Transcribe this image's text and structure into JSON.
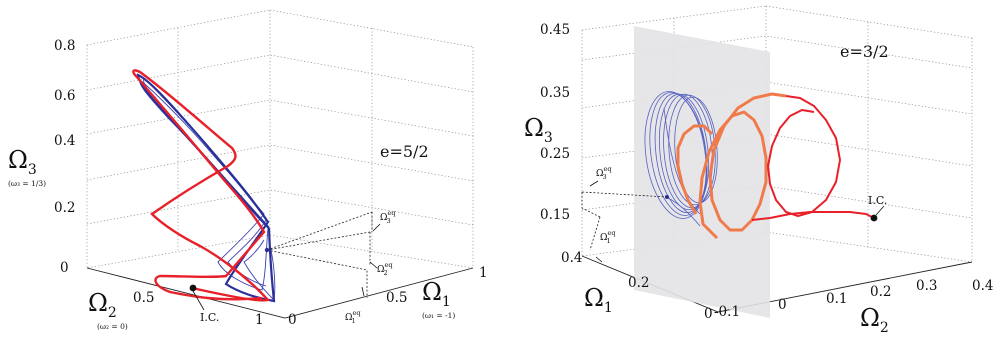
{
  "chart_data": [
    {
      "type": "line",
      "subtype": "3d-trajectory",
      "annotation": "e=5/2",
      "axes": {
        "x": {
          "label": "Ω",
          "label_sub": "1",
          "note": "(ω₁ = -1)",
          "ticks": [
            "0",
            "0.5",
            "1"
          ],
          "range": [
            0,
            1
          ]
        },
        "y": {
          "label": "Ω",
          "label_sub": "2",
          "note": "(ω₂ = 0)",
          "ticks": [
            "1",
            "0.5"
          ],
          "range": [
            0,
            1
          ]
        },
        "z": {
          "label": "Ω",
          "label_sub": "3",
          "note": "(ω₃ = 1/3)",
          "ticks": [
            "0",
            "0.2",
            "0.4",
            "0.6",
            "0.8"
          ],
          "range": [
            0,
            0.8
          ]
        }
      },
      "grid": true,
      "markers": {
        "initial_condition": "I.C."
      },
      "equilibrium_labels": [
        "Ω",
        "eq",
        "3",
        "2",
        "1"
      ],
      "series": [
        {
          "color": "#e8202a",
          "width": "thick"
        },
        {
          "color": "#2b2f9a",
          "width": "thick"
        },
        {
          "color": "#3a3fb0",
          "width": "thin"
        }
      ]
    },
    {
      "type": "line",
      "subtype": "3d-trajectory",
      "annotation": "e=3/2",
      "axes": {
        "x": {
          "label": "Ω",
          "label_sub": "1",
          "ticks": [
            "0",
            "0.2",
            "0.4"
          ],
          "range": [
            0,
            0.4
          ]
        },
        "y": {
          "label": "Ω",
          "label_sub": "2",
          "ticks": [
            "-0.1",
            "0",
            "0.1",
            "0.2",
            "0.3",
            "0.4"
          ],
          "range": [
            -0.1,
            0.4
          ]
        },
        "z": {
          "label": "Ω",
          "label_sub": "3",
          "ticks": [
            "0.15",
            "0.25",
            "0.35",
            "0.45"
          ],
          "range": [
            0.15,
            0.45
          ]
        }
      },
      "grid": true,
      "markers": {
        "initial_condition": "I.C."
      },
      "equilibrium_labels": [
        "Ω",
        "eq",
        "3",
        "1"
      ],
      "series": [
        {
          "color": "#e8202a",
          "width": "medium"
        },
        {
          "color": "#f07a4a",
          "width": "thick"
        },
        {
          "color": "#5560c0",
          "width": "thin"
        }
      ],
      "plane_color": "#e3e3e5"
    }
  ]
}
